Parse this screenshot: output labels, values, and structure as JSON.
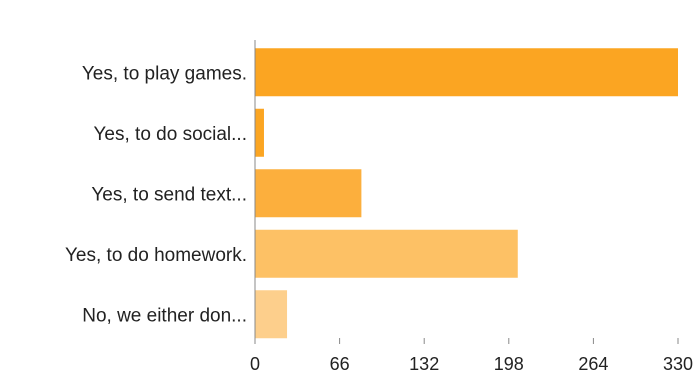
{
  "chart_data": {
    "type": "bar",
    "orientation": "horizontal",
    "categories": [
      "Yes, to play games.",
      "Yes, to do social...",
      "Yes, to send text...",
      "Yes, to do homework.",
      "No, we either don..."
    ],
    "values": [
      330,
      7,
      83,
      205,
      25
    ],
    "bar_colors": [
      "#FBA522",
      "#FBA522",
      "#FCAF3D",
      "#FDC165",
      "#FDCF8C"
    ],
    "x_ticks": [
      0,
      66,
      132,
      198,
      264,
      330
    ],
    "xlim": [
      0,
      330
    ],
    "title": "",
    "xlabel": "",
    "ylabel": "",
    "grid": false,
    "legend": "none"
  }
}
